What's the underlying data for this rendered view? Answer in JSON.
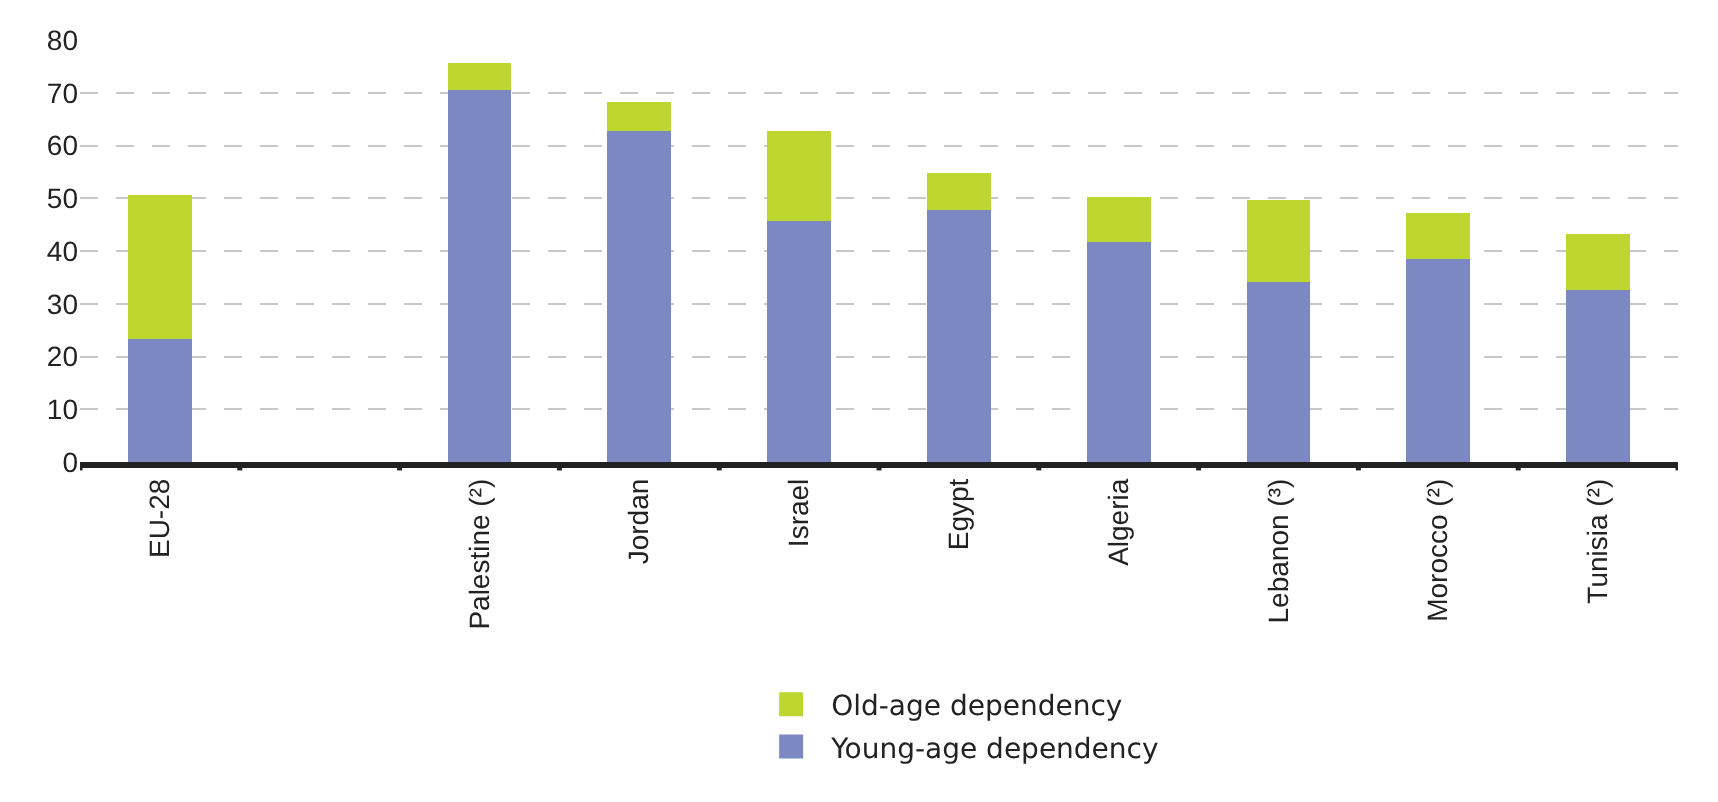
{
  "chart_data": {
    "type": "bar",
    "stacked": true,
    "categories": [
      "EU-28",
      null,
      "Palestine (²)",
      "Jordan",
      "Israel",
      "Egypt",
      "Algeria",
      "Lebanon (³)",
      "Morocco (²)",
      "Tunisia (²)"
    ],
    "series": [
      {
        "name": "Young-age dependency",
        "color": "#7b88c2",
        "values": [
          23.3,
          null,
          70.6,
          62.7,
          45.6,
          47.7,
          41.8,
          34.2,
          38.5,
          32.6
        ]
      },
      {
        "name": "Old-age dependency",
        "color": "#bed630",
        "values": [
          27.4,
          null,
          5.1,
          5.5,
          17.1,
          7.1,
          8.4,
          15.5,
          8.8,
          10.7
        ]
      }
    ],
    "ylim": [
      0,
      80
    ],
    "yticks": [
      0,
      10,
      20,
      30,
      40,
      50,
      60,
      70,
      80
    ],
    "grid": "y",
    "legend": "bottom"
  }
}
